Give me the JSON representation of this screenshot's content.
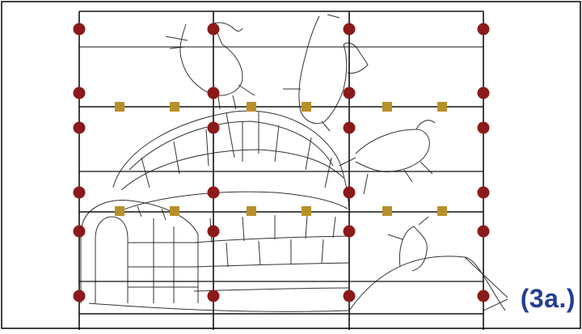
{
  "diagram": {
    "step_label": "(3a.)",
    "colors": {
      "frame": "#000000",
      "grid": "#111111",
      "drawing": "#333333",
      "rivet": "#8b1a1a",
      "pin": "#b8902a",
      "label": "#233f93",
      "border": "#000000"
    },
    "icons": {
      "rivet": "circle",
      "pin": "square"
    }
  }
}
